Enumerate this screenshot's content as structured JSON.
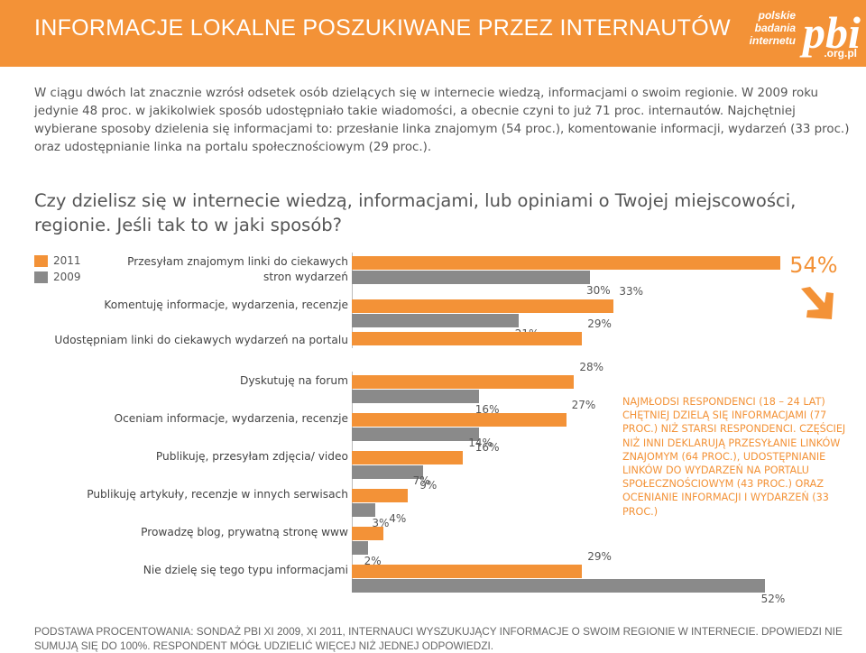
{
  "header": {
    "title": "INFORMACJE LOKALNE POSZUKIWANE PRZEZ INTERNAUTÓW",
    "logo_line1": "polskie",
    "logo_line2": "badania",
    "logo_line3": "internetu",
    "logo_big": "pbi",
    "logo_domain": ".org.pl"
  },
  "intro": "W ciągu dwóch lat znacznie wzrósł odsetek osób dzielących się w internecie wiedzą, informacjami o swoim regionie. W 2009 roku jedynie 48 proc. w jakikolwiek sposób udostępniało takie wiadomości, a obecnie czyni to już 71 proc. internautów. Najchętniej wybierane sposoby dzielenia się informacjami to: przesłanie linka znajomym (54 proc.), komentowanie informacji, wydarzeń (33 proc.) oraz udostępnianie linka na portalu społecznościowym (29 proc.).",
  "question": "Czy dzielisz się w internecie wiedzą, informacjami, lub opiniami o Twojej miejscowości, regionie. Jeśli tak to w jaki sposób?",
  "colors": {
    "orange": "#f39237",
    "gray": "#8a8a8a"
  },
  "note": "NAJMŁODSI RESPONDENCI (18 – 24 LAT) CHĘTNIEJ DZIELĄ SIĘ INFORMACJAMI (77 PROC.) NIŻ STARSI RESPONDENCI. CZĘŚCIEJ NIŻ INNI DEKLARUJĄ PRZESYŁANIE LINKÓW ZNAJOMYM (64 PROC.), UDOSTĘPNIANIE LINKÓW DO WYDARZEŃ NA PORTALU SPOŁECZNOŚCIOWYM (43 PROC.) ORAZ OCENIANIE INFORMACJI I WYDARZEŃ (33 PROC.)",
  "footer": "PODSTAWA PROCENTOWANIA: SONDAŻ PBI XI 2009, XI 2011, INTERNAUCI WYSZUKUJĄCY INFORMACJE O SWOIM REGIONIE W INTERNECIE. DPOWIEDZI NIE SUMUJĄ SIĘ DO 100%. RESPONDENT MÓGŁ UDZIELIĆ WIĘCEJ NIŻ JEDNEJ ODPOWIEDZI.",
  "chart_data": {
    "type": "bar",
    "orientation": "horizontal",
    "legend_position": "top-left",
    "categories": [
      "Przesyłam znajomym linki do ciekawych stron wydarzeń",
      "Komentuję informacje, wydarzenia, recenzje",
      "Udostępniam linki do ciekawych wydarzeń na portalu",
      "Dyskutuję na forum",
      "Oceniam informacje, wydarzenia, recenzje",
      "Publikuję, przesyłam zdjęcia/ video",
      "Publikuję artykuły, recenzje  w innych serwisach",
      "Prowadzę blog, prywatną stronę www",
      "Nie dzielę się tego typu informacjami"
    ],
    "series": [
      {
        "name": "2011",
        "values": [
          54,
          33,
          29,
          28,
          27,
          14,
          7,
          4,
          29
        ]
      },
      {
        "name": "2009",
        "values": [
          30,
          21,
          null,
          16,
          16,
          9,
          3,
          2,
          52
        ]
      }
    ],
    "value_labels": [
      [
        "54%",
        "30%"
      ],
      [
        "33%",
        "21%"
      ],
      [
        "29%",
        ""
      ],
      [
        "28%",
        "16%"
      ],
      [
        "27%",
        "16%"
      ],
      [
        "14%",
        "9%"
      ],
      [
        "7%",
        "3%"
      ],
      [
        "4%",
        "2%"
      ],
      [
        "29%",
        "52%"
      ]
    ]
  }
}
